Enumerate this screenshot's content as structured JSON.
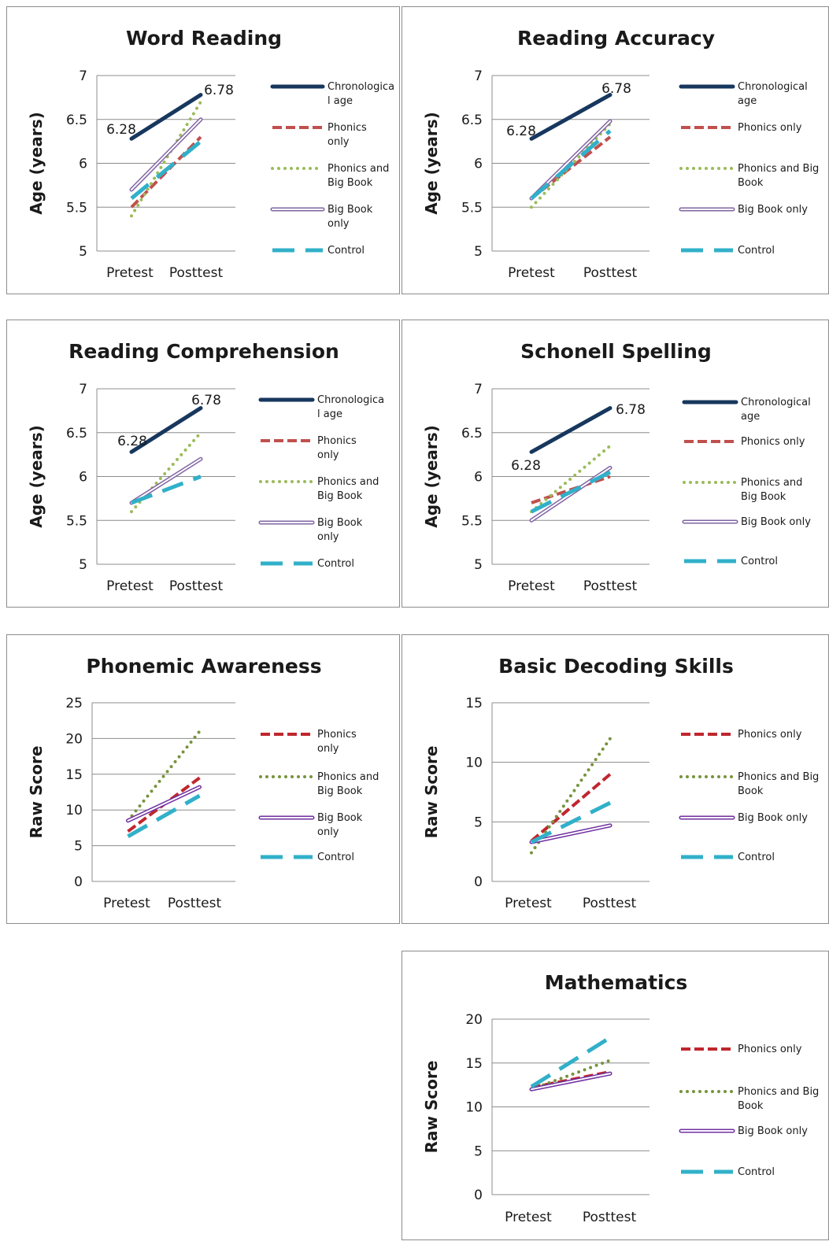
{
  "colors": {
    "chronological": "#17375e",
    "phonics": "#c0504d",
    "phonics_big_book": "#9bbb59",
    "big_book": "#8064a2",
    "control": "#31b0c9",
    "phonics_dark": "#c0262d",
    "phonics_big_book_dark": "#77933c",
    "big_book_dark": "#7030a0"
  },
  "chart_data": [
    {
      "type": "line",
      "title": "Word Reading",
      "ylabel": "Age (years)",
      "categories": [
        "Pretest",
        "Posttest"
      ],
      "ylim": [
        5,
        7
      ],
      "yticks": [
        "5",
        "5.5",
        "6",
        "6.5",
        "7"
      ],
      "series": [
        {
          "name": "Chronologica l age",
          "values": [
            6.28,
            6.78
          ],
          "style": "solid-thick",
          "color": "#17375e",
          "labels": [
            "6.28",
            "6.78"
          ]
        },
        {
          "name": "Phonics only",
          "values": [
            5.5,
            6.3
          ],
          "style": "dash-dot",
          "color": "#c0504d"
        },
        {
          "name": "Phonics and Big Book",
          "values": [
            5.4,
            6.7
          ],
          "style": "dotted",
          "color": "#9bbb59"
        },
        {
          "name": "Big Book only",
          "values": [
            5.7,
            6.5
          ],
          "style": "double",
          "color": "#8064a2"
        },
        {
          "name": "Control",
          "values": [
            5.6,
            6.25
          ],
          "style": "long-dash",
          "color": "#31b0c9"
        }
      ]
    },
    {
      "type": "line",
      "title": "Reading Accuracy",
      "ylabel": "Age (years)",
      "categories": [
        "Pretest",
        "Posttest"
      ],
      "ylim": [
        5,
        7
      ],
      "yticks": [
        "5",
        "5.5",
        "6",
        "6.5",
        "7"
      ],
      "series": [
        {
          "name": "Chronological age",
          "values": [
            6.28,
            6.78
          ],
          "style": "solid-thick",
          "color": "#17375e",
          "labels": [
            "6.28",
            "6.78"
          ]
        },
        {
          "name": "Phonics only",
          "values": [
            5.6,
            6.3
          ],
          "style": "dash-dot",
          "color": "#c0504d"
        },
        {
          "name": "Phonics and Big Book",
          "values": [
            5.5,
            6.45
          ],
          "style": "dotted",
          "color": "#9bbb59"
        },
        {
          "name": "Big Book only",
          "values": [
            5.6,
            6.48
          ],
          "style": "double",
          "color": "#8064a2"
        },
        {
          "name": "Control",
          "values": [
            5.6,
            6.37
          ],
          "style": "long-dash",
          "color": "#31b0c9"
        }
      ]
    },
    {
      "type": "line",
      "title": "Reading Comprehension",
      "ylabel": "Age (years)",
      "categories": [
        "Pretest",
        "Posttest"
      ],
      "ylim": [
        5,
        7
      ],
      "yticks": [
        "5",
        "5.5",
        "6",
        "6.5",
        "7"
      ],
      "series": [
        {
          "name": "Chronologica l age",
          "values": [
            6.28,
            6.78
          ],
          "style": "solid-thick",
          "color": "#17375e",
          "labels": [
            "6.28",
            "6.78"
          ]
        },
        {
          "name": "Phonics only",
          "values": [
            5.7,
            6.2
          ],
          "style": "dash-dot",
          "color": "#c0504d"
        },
        {
          "name": "Phonics and Big Book",
          "values": [
            5.6,
            6.5
          ],
          "style": "dotted",
          "color": "#9bbb59"
        },
        {
          "name": "Big Book only",
          "values": [
            5.7,
            6.2
          ],
          "style": "double",
          "color": "#8064a2"
        },
        {
          "name": "Control",
          "values": [
            5.7,
            6.0
          ],
          "style": "long-dash",
          "color": "#31b0c9"
        }
      ]
    },
    {
      "type": "line",
      "title": "Schonell Spelling",
      "ylabel": "Age (years)",
      "categories": [
        "Pretest",
        "Posttest"
      ],
      "ylim": [
        5,
        7
      ],
      "yticks": [
        "5",
        "5.5",
        "6",
        "6.5",
        "7"
      ],
      "series": [
        {
          "name": "Chronological age",
          "values": [
            6.28,
            6.78
          ],
          "style": "solid-thick",
          "color": "#17375e",
          "labels": [
            "6.28",
            "6.78"
          ]
        },
        {
          "name": "Phonics only",
          "values": [
            5.7,
            6.0
          ],
          "style": "dash-dot",
          "color": "#c0504d"
        },
        {
          "name": "Phonics and Big Book",
          "values": [
            5.6,
            6.35
          ],
          "style": "dotted",
          "color": "#9bbb59"
        },
        {
          "name": "Big Book only",
          "values": [
            5.5,
            6.1
          ],
          "style": "double",
          "color": "#8064a2"
        },
        {
          "name": "Control",
          "values": [
            5.6,
            6.05
          ],
          "style": "long-dash",
          "color": "#31b0c9"
        }
      ]
    },
    {
      "type": "line",
      "title": "Phonemic Awareness",
      "ylabel": "Raw Score",
      "categories": [
        "Pretest",
        "Posttest"
      ],
      "ylim": [
        0,
        25
      ],
      "yticks": [
        "0",
        "5",
        "10",
        "15",
        "20",
        "25"
      ],
      "series": [
        {
          "name": "Phonics only",
          "values": [
            7.0,
            14.5
          ],
          "style": "dash-dot",
          "color": "#c0262d"
        },
        {
          "name": "Phonics and Big Book",
          "values": [
            8.5,
            21.0
          ],
          "style": "dotted",
          "color": "#77933c"
        },
        {
          "name": "Big Book only",
          "values": [
            8.5,
            13.2
          ],
          "style": "double",
          "color": "#7030a0"
        },
        {
          "name": "Control",
          "values": [
            6.3,
            12.0
          ],
          "style": "long-dash",
          "color": "#31b0c9"
        }
      ]
    },
    {
      "type": "line",
      "title": "Basic Decoding Skills",
      "ylabel": "Raw Score",
      "categories": [
        "Pretest",
        "Posttest"
      ],
      "ylim": [
        0,
        15
      ],
      "yticks": [
        "0",
        "5",
        "10",
        "15"
      ],
      "series": [
        {
          "name": "Phonics only",
          "values": [
            3.4,
            9.0
          ],
          "style": "dash-dot",
          "color": "#c0262d"
        },
        {
          "name": "Phonics and Big Book",
          "values": [
            2.4,
            12.0
          ],
          "style": "dotted",
          "color": "#77933c"
        },
        {
          "name": "Big Book only",
          "values": [
            3.3,
            4.7
          ],
          "style": "double",
          "color": "#7030a0"
        },
        {
          "name": "Control",
          "values": [
            3.3,
            6.6
          ],
          "style": "long-dash",
          "color": "#31b0c9"
        }
      ]
    },
    {
      "type": "line",
      "title": "Mathematics",
      "ylabel": "Raw Score",
      "categories": [
        "Pretest",
        "Posttest"
      ],
      "ylim": [
        0,
        20
      ],
      "yticks": [
        "0",
        "5",
        "10",
        "15",
        "20"
      ],
      "series": [
        {
          "name": "Phonics only",
          "values": [
            12.2,
            14.0
          ],
          "style": "dash-dot",
          "color": "#c0262d"
        },
        {
          "name": "Phonics and Big Book",
          "values": [
            12.0,
            15.3
          ],
          "style": "dotted",
          "color": "#77933c"
        },
        {
          "name": "Big Book only",
          "values": [
            12.0,
            13.8
          ],
          "style": "double",
          "color": "#7030a0"
        },
        {
          "name": "Control",
          "values": [
            12.3,
            17.9
          ],
          "style": "long-dash",
          "color": "#31b0c9"
        }
      ]
    }
  ]
}
